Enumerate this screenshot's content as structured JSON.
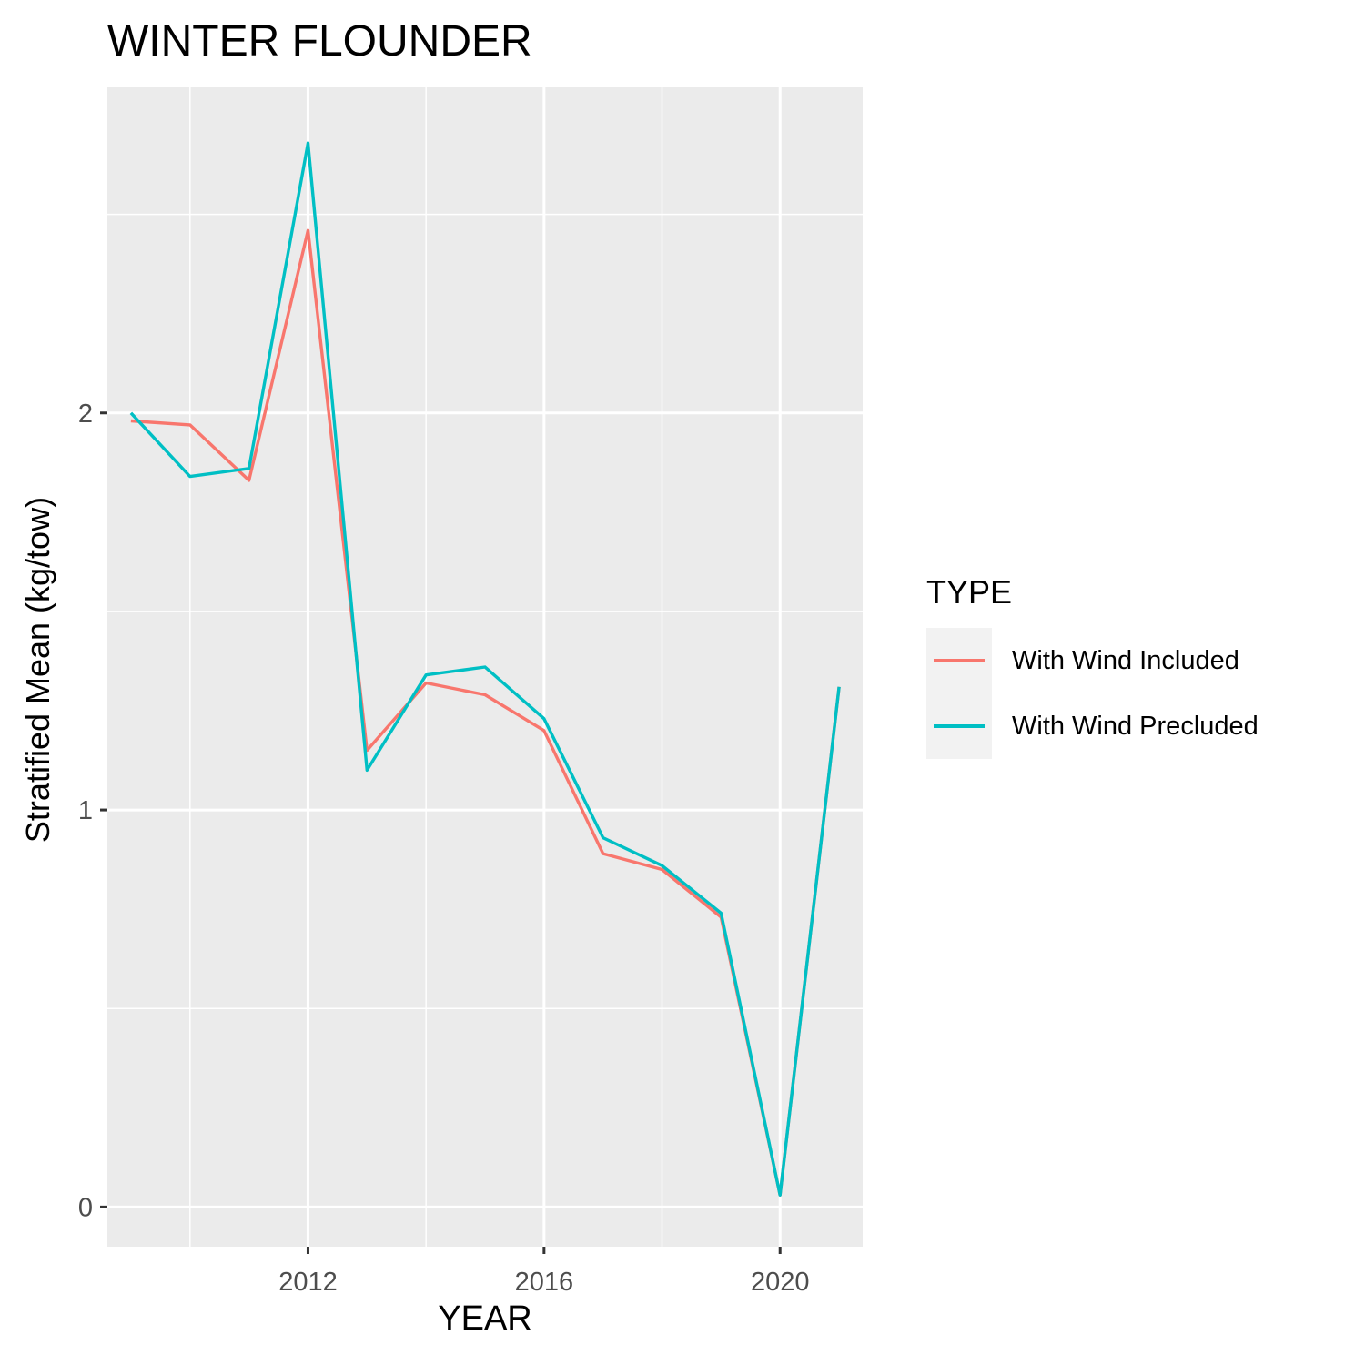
{
  "chart_data": {
    "type": "line",
    "title": "WINTER FLOUNDER",
    "xlabel": "YEAR",
    "ylabel": "Stratified Mean (kg/tow)",
    "xlim": [
      2008.6,
      2021.4
    ],
    "ylim": [
      -0.1,
      2.82
    ],
    "x_ticks": [
      2012,
      2016,
      2020
    ],
    "x_tick_labels": [
      "2012",
      "2016",
      "2020"
    ],
    "x_minor_ticks": [
      2010,
      2014,
      2018
    ],
    "y_ticks": [
      0,
      1,
      2
    ],
    "y_tick_labels": [
      "0",
      "1",
      "2"
    ],
    "y_minor_ticks": [
      0.5,
      1.5,
      2.5
    ],
    "grid": true,
    "legend": {
      "title": "TYPE",
      "position": "right"
    },
    "x": [
      2009,
      2010,
      2011,
      2012,
      2013,
      2014,
      2015,
      2016,
      2017,
      2018,
      2019,
      2020,
      2021
    ],
    "series": [
      {
        "name": "With Wind Included",
        "color": "#F8766D",
        "values": [
          1.98,
          1.97,
          1.83,
          2.46,
          1.15,
          1.32,
          1.29,
          1.2,
          0.89,
          0.85,
          0.73,
          0.03,
          1.31
        ]
      },
      {
        "name": "With Wind Precluded",
        "color": "#00BFC4",
        "values": [
          2.0,
          1.84,
          1.86,
          2.68,
          1.1,
          1.34,
          1.36,
          1.23,
          0.93,
          0.86,
          0.74,
          0.03,
          1.31
        ]
      }
    ]
  }
}
